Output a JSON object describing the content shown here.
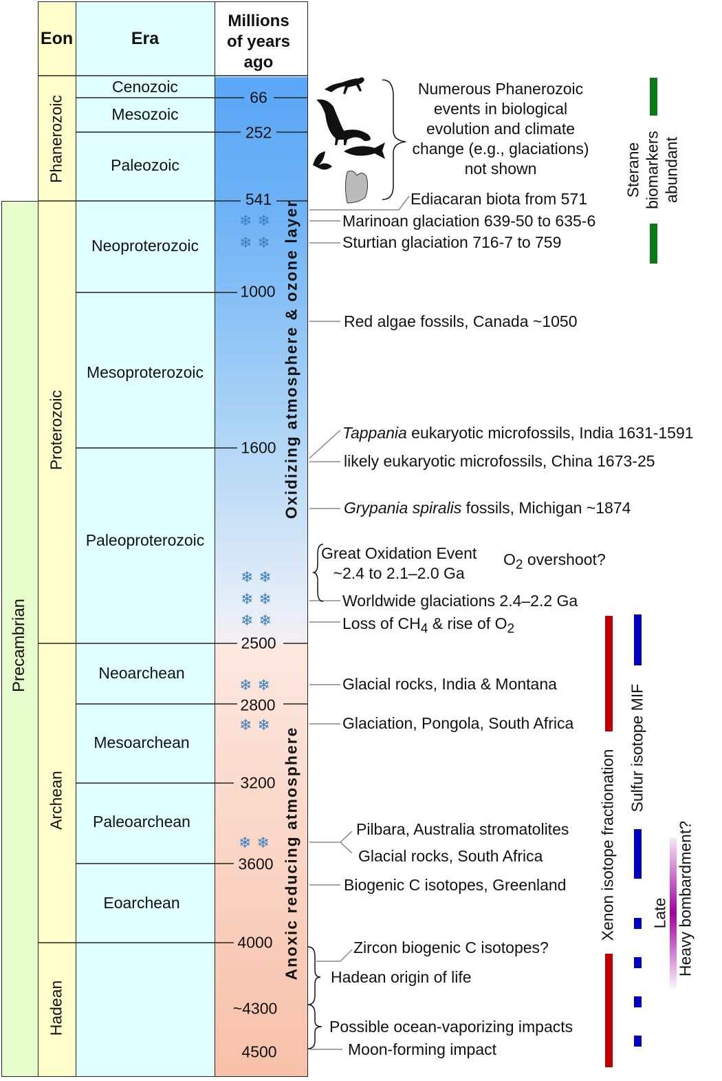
{
  "headers": {
    "eon": "Eon",
    "era": "Era",
    "time": "Millions of years ago"
  },
  "precambrian": "Precambrian",
  "eons": {
    "phanerozoic": "Phanerozoic",
    "proterozoic": "Proterozoic",
    "archean": "Archean",
    "hadean": "Hadean"
  },
  "eras": [
    "Cenozoic",
    "Mesozoic",
    "Paleozoic",
    "Neoproterozoic",
    "Mesoproterozoic",
    "Paleoproterozoic",
    "Neoarchean",
    "Mesoarchean",
    "Paleoarchean",
    "Eoarchean"
  ],
  "ages": [
    "66",
    "252",
    "541",
    "1000",
    "1600",
    "2500",
    "2800",
    "3200",
    "3600",
    "4000",
    "~4300",
    "4500"
  ],
  "atmosphere": {
    "oxidizing": "Oxidizing atmosphere & ozone layer",
    "anoxic": "Anoxic reducing atmosphere"
  },
  "events": {
    "phanerozoic_note": "Numerous Phanerozoic events in biological evolution and climate change (e.g., glaciations) not shown",
    "ediacaran": "Ediacaran biota from 571",
    "marinoan": "Marinoan glaciation 639-50 to 635-6",
    "sturtian": "Sturtian glaciation 716-7 to 759",
    "red_algae": "Red algae fossils, Canada ~1050",
    "tappania_italic": "Tappania",
    "tappania_rest": " eukaryotic microfossils, India 1631-1591",
    "china": "likely eukaryotic microfossils, China 1673-25",
    "grypania_italic": "Grypania spiralis",
    "grypania_rest": " fossils, Michigan ~1874",
    "goe_1": "Great Oxidation Event",
    "goe_2": "~2.4 to 2.1–2.0 Ga",
    "o2_overshoot_a": "O",
    "o2_overshoot_sub": "2",
    "o2_overshoot_b": " overshoot?",
    "worldwide": "Worldwide glaciations 2.4–2.2 Ga",
    "loss_a": "Loss of CH",
    "loss_sub1": "4",
    "loss_b": " & rise of O",
    "loss_sub2": "2",
    "india_montana": "Glacial rocks, India & Montana",
    "pongola": "Glaciation, Pongola, South Africa",
    "pilbara": "Pilbara, Australia stromatolites",
    "sa_glacial": "Glacial rocks, South Africa",
    "greenland": "Biogenic C isotopes, Greenland",
    "zircon": "Zircon biogenic C isotopes?",
    "hadean_life": "Hadean origin of life",
    "ocean_vapor": "Possible ocean-vaporizing impacts",
    "moon": "Moon-forming impact"
  },
  "markers": {
    "sterane_1": "Sterane",
    "sterane_2": "biomarkers",
    "sterane_3": "abundant",
    "xenon": "Xenon isotope fractionation",
    "sulfur": "Sulfur isotope MIF",
    "lhb_1": "Late",
    "lhb_2": "Heavy bombardment?"
  },
  "colors": {
    "sterane": "#0a7a16",
    "xenon": "#c00000",
    "sulfur": "#0000c0",
    "lhb": "#a000a0"
  }
}
